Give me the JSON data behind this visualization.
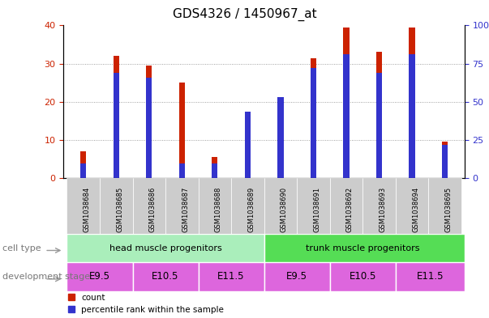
{
  "title": "GDS4326 / 1450967_at",
  "samples": [
    "GSM1038684",
    "GSM1038685",
    "GSM1038686",
    "GSM1038687",
    "GSM1038688",
    "GSM1038689",
    "GSM1038690",
    "GSM1038691",
    "GSM1038692",
    "GSM1038693",
    "GSM1038694",
    "GSM1038695"
  ],
  "counts": [
    7,
    32,
    29.5,
    25,
    5.5,
    16.5,
    20,
    31.5,
    39.5,
    33,
    39.5,
    9.5
  ],
  "percentile_ranks_scaled": [
    3.75,
    27.5,
    26.25,
    3.75,
    3.75,
    17.5,
    21.25,
    28.75,
    32.5,
    27.5,
    32.5,
    8.75
  ],
  "percentile_ranks_pct": [
    9.375,
    68.75,
    65.625,
    9.375,
    9.375,
    43.75,
    53.125,
    71.875,
    81.25,
    68.75,
    81.25,
    21.875
  ],
  "ylim_left": [
    0,
    40
  ],
  "ylim_right": [
    0,
    100
  ],
  "yticks_left": [
    0,
    10,
    20,
    30,
    40
  ],
  "yticks_right": [
    0,
    25,
    50,
    75,
    100
  ],
  "bar_color_red": "#CC2200",
  "bar_color_blue": "#3333CC",
  "bar_width": 0.18,
  "cell_type_head_color": "#AAEEBB",
  "cell_type_trunk_color": "#55DD55",
  "dev_stage_color": "#DD66DD",
  "cell_type_label": "cell type",
  "dev_stage_label": "development stage",
  "legend_count": "count",
  "legend_pct": "percentile rank within the sample",
  "grid_color": "#888888",
  "title_fontsize": 11,
  "tick_fontsize": 8,
  "label_color": "#777777",
  "bg_color": "#FFFFFF",
  "sample_box_color": "#CCCCCC"
}
